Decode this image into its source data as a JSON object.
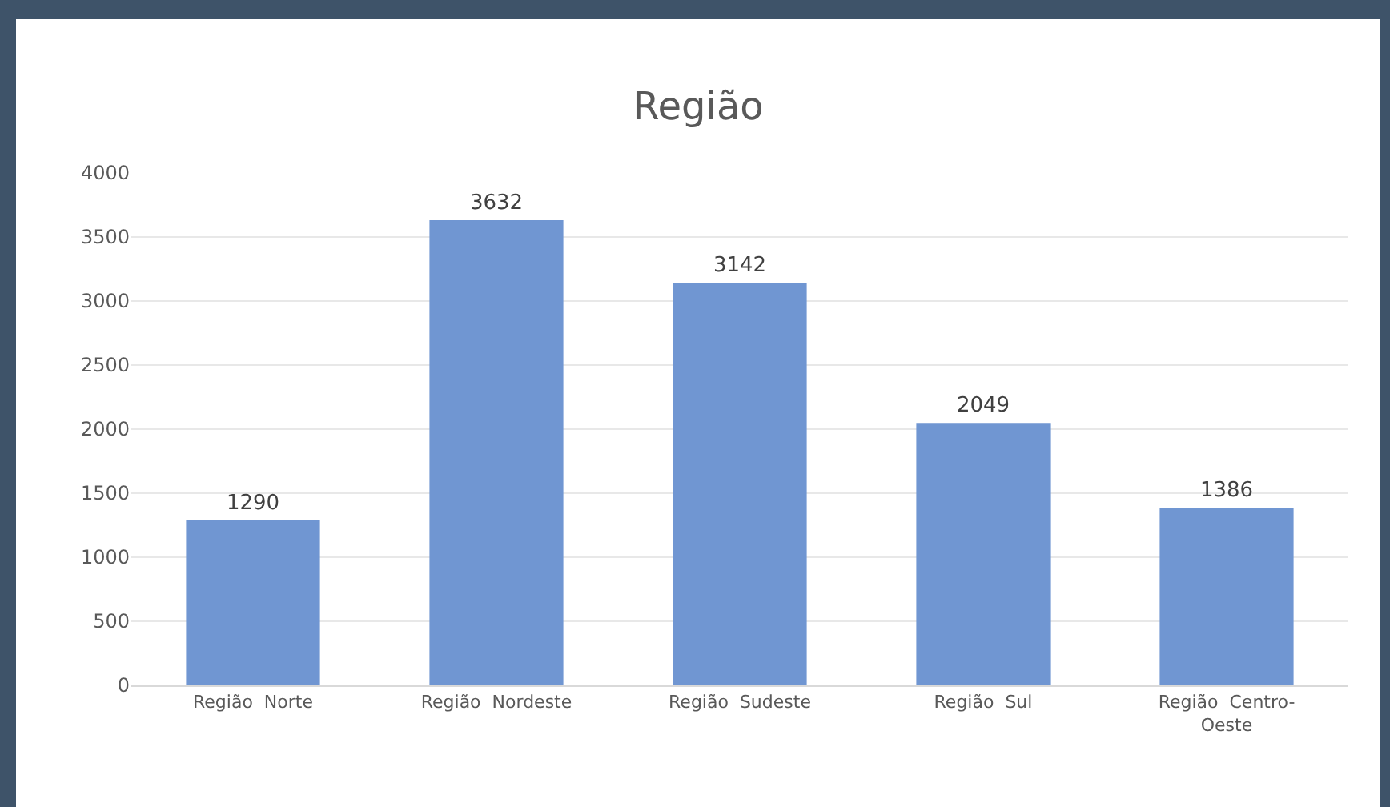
{
  "chart_data": {
    "type": "bar",
    "title": "Região",
    "categories": [
      "Região  Norte",
      "Região  Nordeste",
      "Região  Sudeste",
      "Região  Sul",
      "Região  Centro-Oeste"
    ],
    "values": [
      1290,
      3632,
      3142,
      2049,
      1386
    ],
    "color": "#7096d2",
    "ylim": [
      0,
      4000
    ],
    "yticks": [
      0,
      500,
      1000,
      1500,
      2000,
      2500,
      3000,
      3500,
      4000
    ],
    "grid": "y",
    "data_labels": true
  }
}
